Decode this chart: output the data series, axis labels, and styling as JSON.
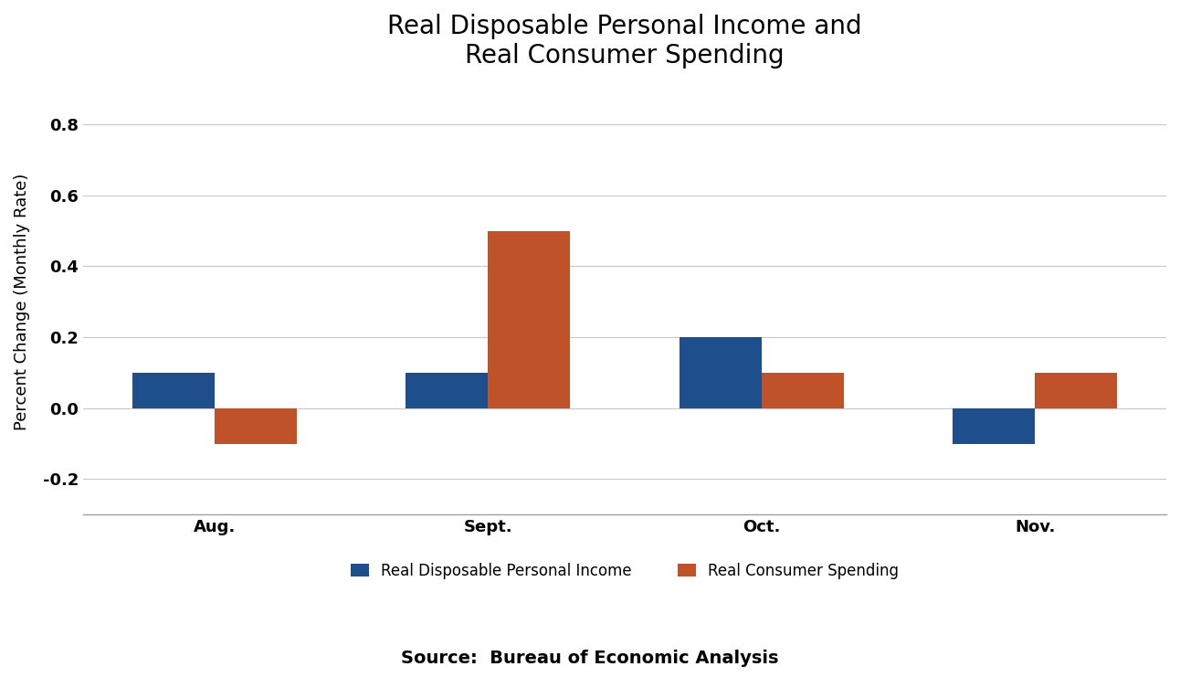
{
  "title": "Real Disposable Personal Income and\nReal Consumer Spending",
  "categories": [
    "Aug.",
    "Sept.",
    "Oct.",
    "Nov."
  ],
  "income_values": [
    0.1,
    0.1,
    0.2,
    -0.1
  ],
  "spending_values": [
    -0.1,
    0.5,
    0.1,
    0.1
  ],
  "income_color": "#1F4E8C",
  "spending_color": "#C0522A",
  "ylabel": "Percent Change (Monthly Rate)",
  "ylim": [
    -0.3,
    0.9
  ],
  "yticks": [
    -0.2,
    0.0,
    0.2,
    0.4,
    0.6,
    0.8
  ],
  "legend_income": "Real Disposable Personal Income",
  "legend_spending": "Real Consumer Spending",
  "source_text": "Source:  Bureau of Economic Analysis",
  "bar_width": 0.3,
  "title_fontsize": 20,
  "axis_label_fontsize": 13,
  "tick_fontsize": 13,
  "legend_fontsize": 12,
  "source_fontsize": 14,
  "background_color": "#ffffff"
}
